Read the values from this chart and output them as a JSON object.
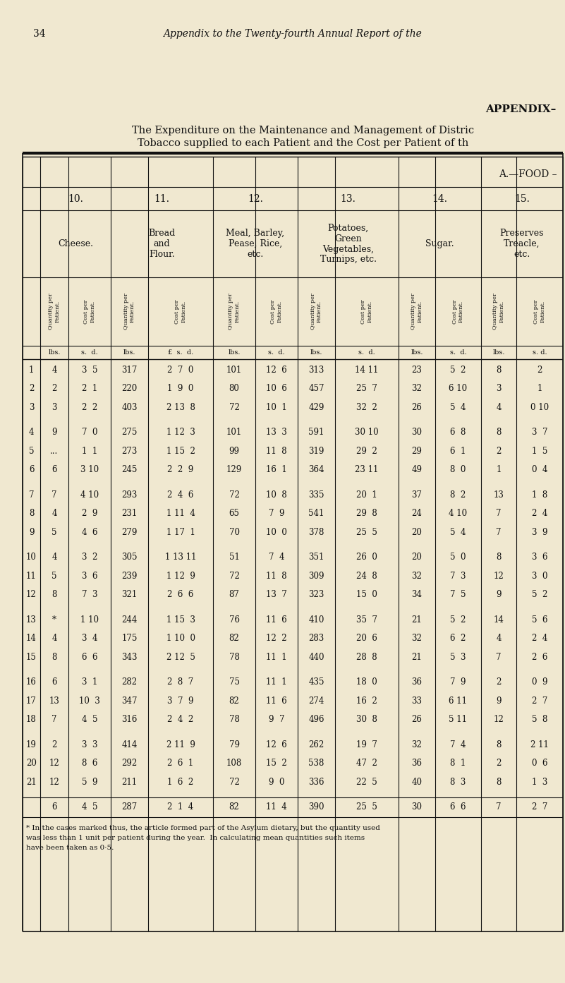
{
  "bg_color": "#f0e8d0",
  "page_number": "34",
  "page_title": "Appendix to the Twenty-fourth Annual Report of the",
  "appendix_label": "APPENDIX–",
  "subtitle1": "The Expenditure on the Maintenance and Management of Distric",
  "subtitle2": "Tobacco supplied to each Patient and the Cost per Patient of th",
  "section_label": "A.—FOOD –",
  "col_numbers": [
    "10.",
    "11.",
    "12.",
    "13.",
    "14.",
    "15."
  ],
  "col_names": [
    "Cheese.",
    "Bread\nand\nFlour.",
    "Meal, Barley,\nPease, Rice,\netc.",
    "Potatoes,\nGreen\nVegetables,\nTurnips, etc.",
    "Sugar.",
    "Preserves\nTreacle,\netc."
  ],
  "units": [
    "lbs.",
    "s.  d.",
    "lbs.",
    "£  s.  d.",
    "lbs.",
    "s.  d.",
    "lbs.",
    "s.  d.",
    "lbs.",
    "s.  d.",
    "lbs.",
    "s. d."
  ],
  "rows": [
    [
      1,
      "4",
      "3  5",
      "317",
      "2  7  0",
      "101",
      "12  6",
      "313",
      "14 11",
      "23",
      "5  2",
      "8",
      "2"
    ],
    [
      2,
      "2",
      "2  1",
      "220",
      "1  9  0",
      "80",
      "10  6",
      "457",
      "25  7",
      "32",
      "6 10",
      "3",
      "1"
    ],
    [
      3,
      "3",
      "2  2",
      "403",
      "2 13  8",
      "72",
      "10  1",
      "429",
      "32  2",
      "26",
      "5  4",
      "4",
      "0 10"
    ],
    [
      4,
      "9",
      "7  0",
      "275",
      "1 12  3",
      "101",
      "13  3",
      "591",
      "30 10",
      "30",
      "6  8",
      "8",
      "3  7"
    ],
    [
      5,
      "...",
      "1  1",
      "273",
      "1 15  2",
      "99",
      "11  8",
      "319",
      "29  2",
      "29",
      "6  1",
      "2",
      "1  5"
    ],
    [
      6,
      "6",
      "3 10",
      "245",
      "2  2  9",
      "129",
      "16  1",
      "364",
      "23 11",
      "49",
      "8  0",
      "1",
      "0  4"
    ],
    [
      7,
      "7",
      "4 10",
      "293",
      "2  4  6",
      "72",
      "10  8",
      "335",
      "20  1",
      "37",
      "8  2",
      "13",
      "1  8"
    ],
    [
      8,
      "4",
      "2  9",
      "231",
      "1 11  4",
      "65",
      "7  9",
      "541",
      "29  8",
      "24",
      "4 10",
      "7",
      "2  4"
    ],
    [
      9,
      "5",
      "4  6",
      "279",
      "1 17  1",
      "70",
      "10  0",
      "378",
      "25  5",
      "20",
      "5  4",
      "7",
      "3  9"
    ],
    [
      10,
      "4",
      "3  2",
      "305",
      "1 13 11",
      "51",
      "7  4",
      "351",
      "26  0",
      "20",
      "5  0",
      "8",
      "3  6"
    ],
    [
      11,
      "5",
      "3  6",
      "239",
      "1 12  9",
      "72",
      "11  8",
      "309",
      "24  8",
      "32",
      "7  3",
      "12",
      "3  0"
    ],
    [
      12,
      "8",
      "7  3",
      "321",
      "2  6  6",
      "87",
      "13  7",
      "323",
      "15  0",
      "34",
      "7  5",
      "9",
      "5  2"
    ],
    [
      13,
      "*",
      "1 10",
      "244",
      "1 15  3",
      "76",
      "11  6",
      "410",
      "35  7",
      "21",
      "5  2",
      "14",
      "5  6"
    ],
    [
      14,
      "4",
      "3  4",
      "175",
      "1 10  0",
      "82",
      "12  2",
      "283",
      "20  6",
      "32",
      "6  2",
      "4",
      "2  4"
    ],
    [
      15,
      "8",
      "6  6",
      "343",
      "2 12  5",
      "78",
      "11  1",
      "440",
      "28  8",
      "21",
      "5  3",
      "7",
      "2  6"
    ],
    [
      16,
      "6",
      "3  1",
      "282",
      "2  8  7",
      "75",
      "11  1",
      "435",
      "18  0",
      "36",
      "7  9",
      "2",
      "0  9"
    ],
    [
      17,
      "13",
      "10  3",
      "347",
      "3  7  9",
      "82",
      "11  6",
      "274",
      "16  2",
      "33",
      "6 11",
      "9",
      "2  7"
    ],
    [
      18,
      "7",
      "4  5",
      "316",
      "2  4  2",
      "78",
      "9  7",
      "496",
      "30  8",
      "26",
      "5 11",
      "12",
      "5  8"
    ],
    [
      19,
      "2",
      "3  3",
      "414",
      "2 11  9",
      "79",
      "12  6",
      "262",
      "19  7",
      "32",
      "7  4",
      "8",
      "2 11"
    ],
    [
      20,
      "12",
      "8  6",
      "292",
      "2  6  1",
      "108",
      "15  2",
      "538",
      "47  2",
      "36",
      "8  1",
      "2",
      "0  6"
    ],
    [
      21,
      "12",
      "5  9",
      "211",
      "1  6  2",
      "72",
      "9  0",
      "336",
      "22  5",
      "40",
      "8  3",
      "8",
      "1  3"
    ],
    [
      "",
      "6",
      "4  5",
      "287",
      "2  1  4",
      "82",
      "11  4",
      "390",
      "25  5",
      "30",
      "6  6",
      "7",
      "2  7"
    ]
  ],
  "footnote1": "* In the cases marked thus, the article formed part of the Asylum dietary, but the quantity used",
  "footnote2": "was less than 1 unit per patient during the year.  In calculating mean quantities such items",
  "footnote3": "have been taken as 0·5."
}
